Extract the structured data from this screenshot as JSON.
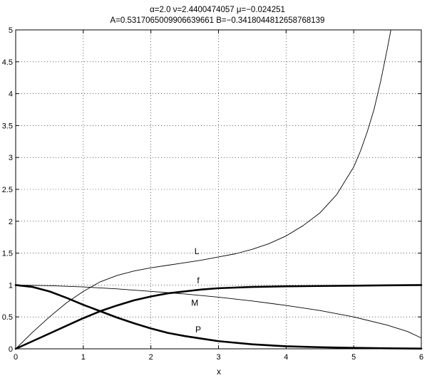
{
  "chart_data": {
    "type": "line",
    "title_line1": "α=2.0    ν=2.4400474057    μ=−0.024251",
    "title_line2": "A=0.5317065009906639661      B=−0.3418044812658768139",
    "xlabel": "x",
    "ylabel": "",
    "xlim": [
      0,
      6
    ],
    "ylim": [
      0,
      5
    ],
    "xticks": [
      "0",
      "1",
      "2",
      "3",
      "4",
      "5",
      "6"
    ],
    "yticks": [
      "0",
      "0.5",
      "1",
      "1.5",
      "2",
      "2.5",
      "3",
      "3.5",
      "4",
      "4.5",
      "5"
    ],
    "grid": true,
    "series": [
      {
        "name": "L",
        "label_at": [
          2.68,
          1.53
        ],
        "bold": false,
        "points": [
          [
            0,
            0
          ],
          [
            0.25,
            0.26
          ],
          [
            0.5,
            0.5
          ],
          [
            0.75,
            0.72
          ],
          [
            1,
            0.9
          ],
          [
            1.25,
            1.05
          ],
          [
            1.5,
            1.15
          ],
          [
            1.75,
            1.22
          ],
          [
            2,
            1.27
          ],
          [
            2.25,
            1.31
          ],
          [
            2.5,
            1.35
          ],
          [
            2.75,
            1.39
          ],
          [
            3,
            1.44
          ],
          [
            3.25,
            1.49
          ],
          [
            3.5,
            1.56
          ],
          [
            3.75,
            1.65
          ],
          [
            4,
            1.77
          ],
          [
            4.25,
            1.93
          ],
          [
            4.5,
            2.13
          ],
          [
            4.75,
            2.42
          ],
          [
            5,
            2.85
          ],
          [
            5.1,
            3.1
          ],
          [
            5.2,
            3.4
          ],
          [
            5.3,
            3.75
          ],
          [
            5.4,
            4.2
          ],
          [
            5.5,
            4.72
          ],
          [
            5.55,
            5.0
          ]
        ]
      },
      {
        "name": "f",
        "label_at": [
          2.7,
          1.07
        ],
        "bold": true,
        "points": [
          [
            0,
            0
          ],
          [
            0.25,
            0.12
          ],
          [
            0.5,
            0.24
          ],
          [
            0.75,
            0.36
          ],
          [
            1,
            0.48
          ],
          [
            1.25,
            0.59
          ],
          [
            1.5,
            0.68
          ],
          [
            1.75,
            0.76
          ],
          [
            2,
            0.82
          ],
          [
            2.25,
            0.87
          ],
          [
            2.5,
            0.9
          ],
          [
            2.75,
            0.93
          ],
          [
            3,
            0.95
          ],
          [
            3.5,
            0.97
          ],
          [
            4,
            0.98
          ],
          [
            4.5,
            0.985
          ],
          [
            5,
            0.99
          ],
          [
            5.5,
            0.995
          ],
          [
            6,
            1.0
          ]
        ]
      },
      {
        "name": "M",
        "label_at": [
          2.65,
          0.72
        ],
        "bold": false,
        "points": [
          [
            0,
            1.0
          ],
          [
            0.5,
            0.99
          ],
          [
            1,
            0.97
          ],
          [
            1.5,
            0.94
          ],
          [
            2,
            0.9
          ],
          [
            2.5,
            0.86
          ],
          [
            3,
            0.81
          ],
          [
            3.5,
            0.75
          ],
          [
            4,
            0.68
          ],
          [
            4.5,
            0.6
          ],
          [
            5,
            0.5
          ],
          [
            5.5,
            0.37
          ],
          [
            5.8,
            0.27
          ],
          [
            6,
            0.17
          ]
        ]
      },
      {
        "name": "P",
        "label_at": [
          2.7,
          0.3
        ],
        "bold": true,
        "points": [
          [
            0,
            1.0
          ],
          [
            0.25,
            0.97
          ],
          [
            0.5,
            0.9
          ],
          [
            0.75,
            0.8
          ],
          [
            1,
            0.69
          ],
          [
            1.25,
            0.59
          ],
          [
            1.5,
            0.49
          ],
          [
            1.75,
            0.4
          ],
          [
            2,
            0.32
          ],
          [
            2.25,
            0.25
          ],
          [
            2.5,
            0.2
          ],
          [
            2.75,
            0.16
          ],
          [
            3,
            0.12
          ],
          [
            3.5,
            0.07
          ],
          [
            4,
            0.04
          ],
          [
            4.5,
            0.025
          ],
          [
            5,
            0.015
          ],
          [
            5.5,
            0.008
          ],
          [
            6,
            0.004
          ]
        ]
      }
    ]
  }
}
